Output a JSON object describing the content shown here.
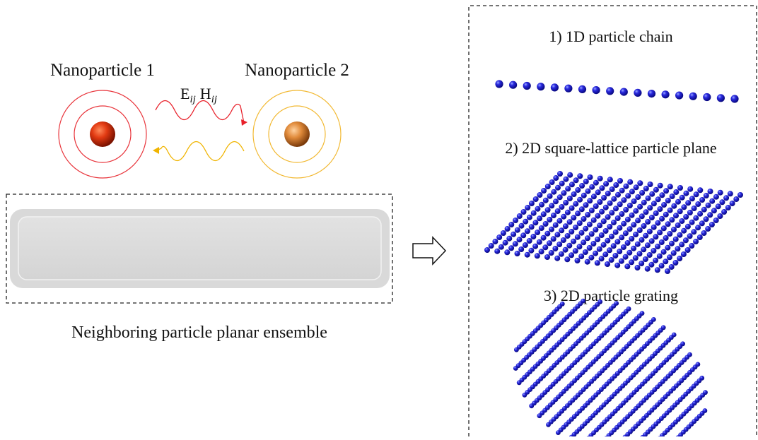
{
  "left": {
    "np1_label": "Nanoparticle 1",
    "np2_label": "Nanoparticle 2",
    "field_e": "E",
    "field_h": "H",
    "field_sub": "ij",
    "ensemble_label": "Neighboring particle planar ensemble"
  },
  "right": {
    "items": [
      {
        "label": "1) 1D particle chain"
      },
      {
        "label": "2) 2D square-lattice particle plane"
      },
      {
        "label": "3) 2D particle grating"
      }
    ]
  },
  "colors": {
    "np1_ring": "#e8333a",
    "np2_ring": "#f2b933",
    "wave_red": "#e8202a",
    "wave_yellow": "#f0b400",
    "particle_blue": "#1a1ad0"
  },
  "icons": {
    "arrow": "right-arrow-icon"
  }
}
